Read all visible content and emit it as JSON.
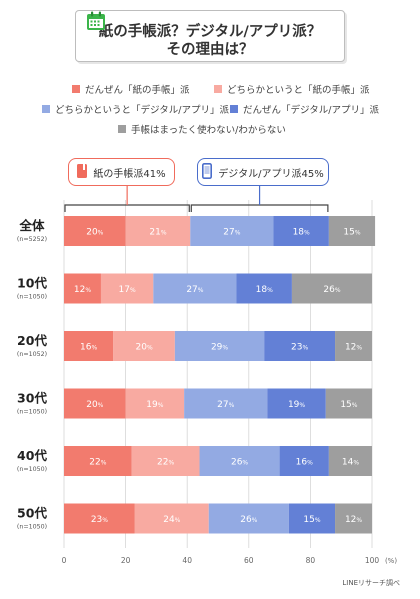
{
  "title": {
    "line1": "紙の手帳派？デジタル/アプリ派？",
    "line2": "その理由は？"
  },
  "icon": "calendar-icon",
  "legend": [
    {
      "label": "だんぜん「紙の手帳」派",
      "color": "#f27b6e"
    },
    {
      "label": "どちらかというと「紙の手帳」派",
      "color": "#f8aaa1"
    },
    {
      "label": "どちらかというと「デジタル/アプリ」派",
      "color": "#93aae3"
    },
    {
      "label": "だんぜん「デジタル/アプリ」派",
      "color": "#6380d6"
    },
    {
      "label": "手帳はまったく使わない/わからない",
      "color": "#9e9e9e"
    }
  ],
  "callouts": {
    "paper": {
      "label": "紙の手帳派41%",
      "icon": "notebook-icon",
      "color": "#f06b5c"
    },
    "digital": {
      "label": "デジタル/アプリ派45%",
      "icon": "smartphone-icon",
      "color": "#4a6dcb"
    }
  },
  "source": "LINEリサーチ調べ",
  "chart_data": {
    "type": "bar",
    "orientation": "horizontal",
    "stacked": true,
    "categories": [
      {
        "label": "全体",
        "sub": "(n=5252)"
      },
      {
        "label": "10代",
        "sub": "(n=1050)"
      },
      {
        "label": "20代",
        "sub": "(n=1052)"
      },
      {
        "label": "30代",
        "sub": "(n=1050)"
      },
      {
        "label": "40代",
        "sub": "(n=1050)"
      },
      {
        "label": "50代",
        "sub": "(n=1050)"
      }
    ],
    "series": [
      {
        "name": "だんぜん「紙の手帳」派",
        "color": "#f27b6e",
        "values": [
          20,
          12,
          16,
          20,
          22,
          23
        ]
      },
      {
        "name": "どちらかというと「紙の手帳」派",
        "color": "#f8aaa1",
        "values": [
          21,
          17,
          20,
          19,
          22,
          24
        ]
      },
      {
        "name": "どちらかというと「デジタル/アプリ」派",
        "color": "#93aae3",
        "values": [
          27,
          27,
          29,
          27,
          26,
          26
        ]
      },
      {
        "name": "だんぜん「デジタル/アプリ」派",
        "color": "#6380d6",
        "values": [
          18,
          18,
          23,
          19,
          16,
          15
        ]
      },
      {
        "name": "手帳はまったく使わない/わからない",
        "color": "#9e9e9e",
        "values": [
          15,
          26,
          12,
          15,
          14,
          12
        ]
      }
    ],
    "value_suffix": "%",
    "xlim": [
      0,
      100
    ],
    "xticks": [
      0,
      20,
      40,
      60,
      80,
      100
    ],
    "xunit": "(%)",
    "grid": true,
    "legend_position": "top"
  }
}
